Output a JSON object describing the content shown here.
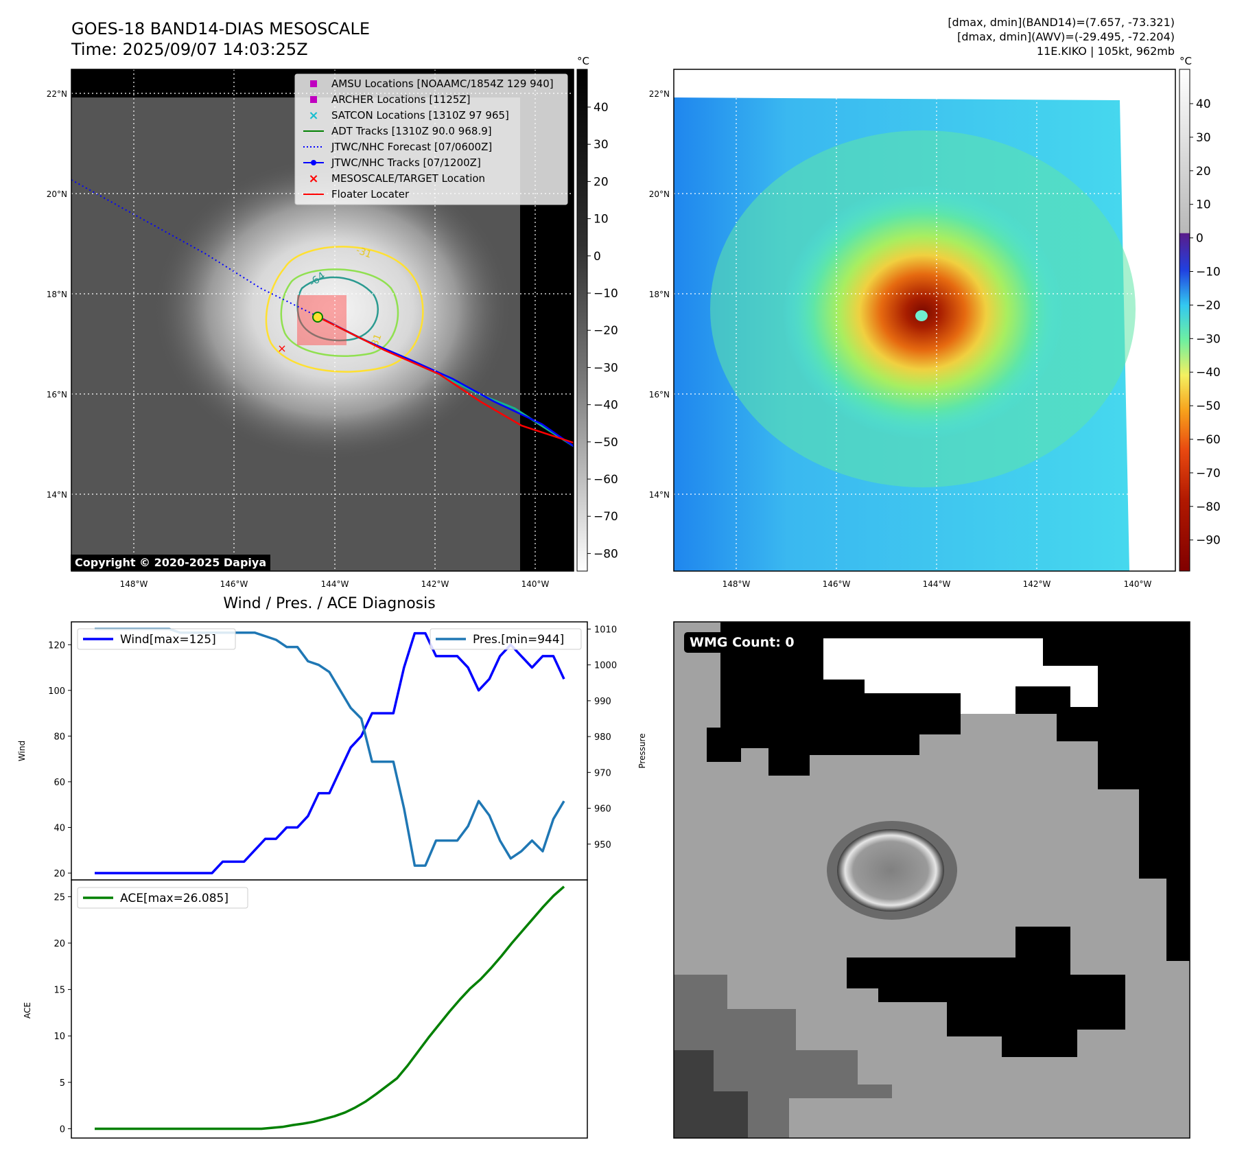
{
  "header": {
    "title_line1": "GOES-18 BAND14-DIAS MESOSCALE",
    "title_line2": "Time: 2025/09/07 14:03:25Z",
    "info_line1": "[dmax, dmin](BAND14)=(7.657, -73.321)",
    "info_line2": "[dmax, dmin](AWV)=(-29.495, -72.204)",
    "info_line3": "11E.KIKO | 105kt, 962mb"
  },
  "map_axes": {
    "lat_ticks": [
      "22°N",
      "20°N",
      "18°N",
      "16°N",
      "14°N"
    ],
    "lon_ticks": [
      "148°W",
      "146°W",
      "144°W",
      "142°W",
      "140°W"
    ]
  },
  "ir_panel": {
    "copyright": "Copyright © 2020-2025 Dapiya",
    "colorbar_unit": "°C",
    "colorbar_ticks": [
      "40",
      "30",
      "20",
      "10",
      "0",
      "−10",
      "−20",
      "−30",
      "−40",
      "−50",
      "−60",
      "−70",
      "−80"
    ],
    "contour_labels": [
      "-64",
      "-31",
      "-31"
    ],
    "legend": [
      {
        "label": "AMSU Locations [NOAAMC/1854Z 129 940]",
        "color": "#c000c0",
        "marker": "square"
      },
      {
        "label": "ARCHER Locations [1125Z]",
        "color": "#c000c0",
        "marker": "square"
      },
      {
        "label": "SATCON Locations [1310Z 97 965]",
        "color": "#17becf",
        "marker": "x"
      },
      {
        "label": "ADT Tracks [1310Z 90.0 968.9]",
        "color": "#008000",
        "marker": "line"
      },
      {
        "label": "JTWC/NHC Forecast [07/0600Z]",
        "color": "#0000ff",
        "marker": "dotted"
      },
      {
        "label": "JTWC/NHC Tracks [07/1200Z]",
        "color": "#0000ff",
        "marker": "line-dot"
      },
      {
        "label": "MESOSCALE/TARGET Location",
        "color": "#ff0000",
        "marker": "x"
      },
      {
        "label": "Floater Locater",
        "color": "#ff0000",
        "marker": "line"
      }
    ]
  },
  "color_panel": {
    "colorbar_unit": "°C",
    "colorbar_ticks": [
      "40",
      "30",
      "20",
      "10",
      "0",
      "−10",
      "−20",
      "−30",
      "−40",
      "−50",
      "−60",
      "−70",
      "−80",
      "−90"
    ]
  },
  "wmg_panel": {
    "label": "WMG Count: 0"
  },
  "chart_data": [
    {
      "type": "line",
      "title": "Wind / Pres. / ACE Diagnosis",
      "ylabel": "Wind",
      "y2label": "Pressure",
      "ylim": [
        17,
        130
      ],
      "y2lim": [
        940,
        1012
      ],
      "yticks": [
        20,
        40,
        60,
        80,
        100,
        120
      ],
      "y2ticks": [
        950,
        960,
        970,
        980,
        990,
        1000,
        1010
      ],
      "legend": "top-left / top-right",
      "series": [
        {
          "name": "Wind[max=125]",
          "axis": "left",
          "color": "#0000ff",
          "values": [
            20,
            20,
            20,
            20,
            20,
            20,
            20,
            20,
            20,
            20,
            20,
            20,
            25,
            25,
            25,
            30,
            35,
            35,
            40,
            40,
            45,
            55,
            55,
            65,
            75,
            80,
            90,
            90,
            90,
            110,
            125,
            125,
            115,
            115,
            115,
            110,
            100,
            105,
            115,
            120,
            115,
            110,
            115,
            115,
            105
          ]
        },
        {
          "name": "Pres.[min=944]",
          "axis": "right",
          "color": "#1f77b4",
          "values": [
            1010,
            1010,
            1010,
            1010,
            1010,
            1010,
            1010,
            1010,
            1009,
            1009,
            1009,
            1009,
            1009,
            1009,
            1009,
            1009,
            1008,
            1007,
            1005,
            1005,
            1001,
            1000,
            998,
            993,
            988,
            985,
            973,
            973,
            973,
            960,
            944,
            944,
            951,
            951,
            951,
            955,
            962,
            958,
            951,
            946,
            948,
            951,
            948,
            957,
            962
          ]
        }
      ]
    },
    {
      "type": "line",
      "ylabel": "ACE",
      "ylim": [
        -1,
        26.8
      ],
      "yticks": [
        0,
        5,
        10,
        15,
        20,
        25
      ],
      "legend": "top-left",
      "series": [
        {
          "name": "ACE[max=26.085]",
          "color": "#008000",
          "values": [
            0,
            0,
            0,
            0,
            0,
            0,
            0,
            0,
            0,
            0,
            0,
            0,
            0,
            0,
            0,
            0,
            0,
            0.1,
            0.2,
            0.4,
            0.55,
            0.75,
            1.05,
            1.35,
            1.75,
            2.3,
            2.95,
            3.75,
            4.6,
            5.45,
            6.8,
            8.3,
            9.8,
            11.2,
            12.6,
            13.9,
            15.1,
            16.1,
            17.3,
            18.6,
            20.0,
            21.3,
            22.6,
            23.9,
            25.1,
            26.085
          ]
        }
      ]
    }
  ]
}
